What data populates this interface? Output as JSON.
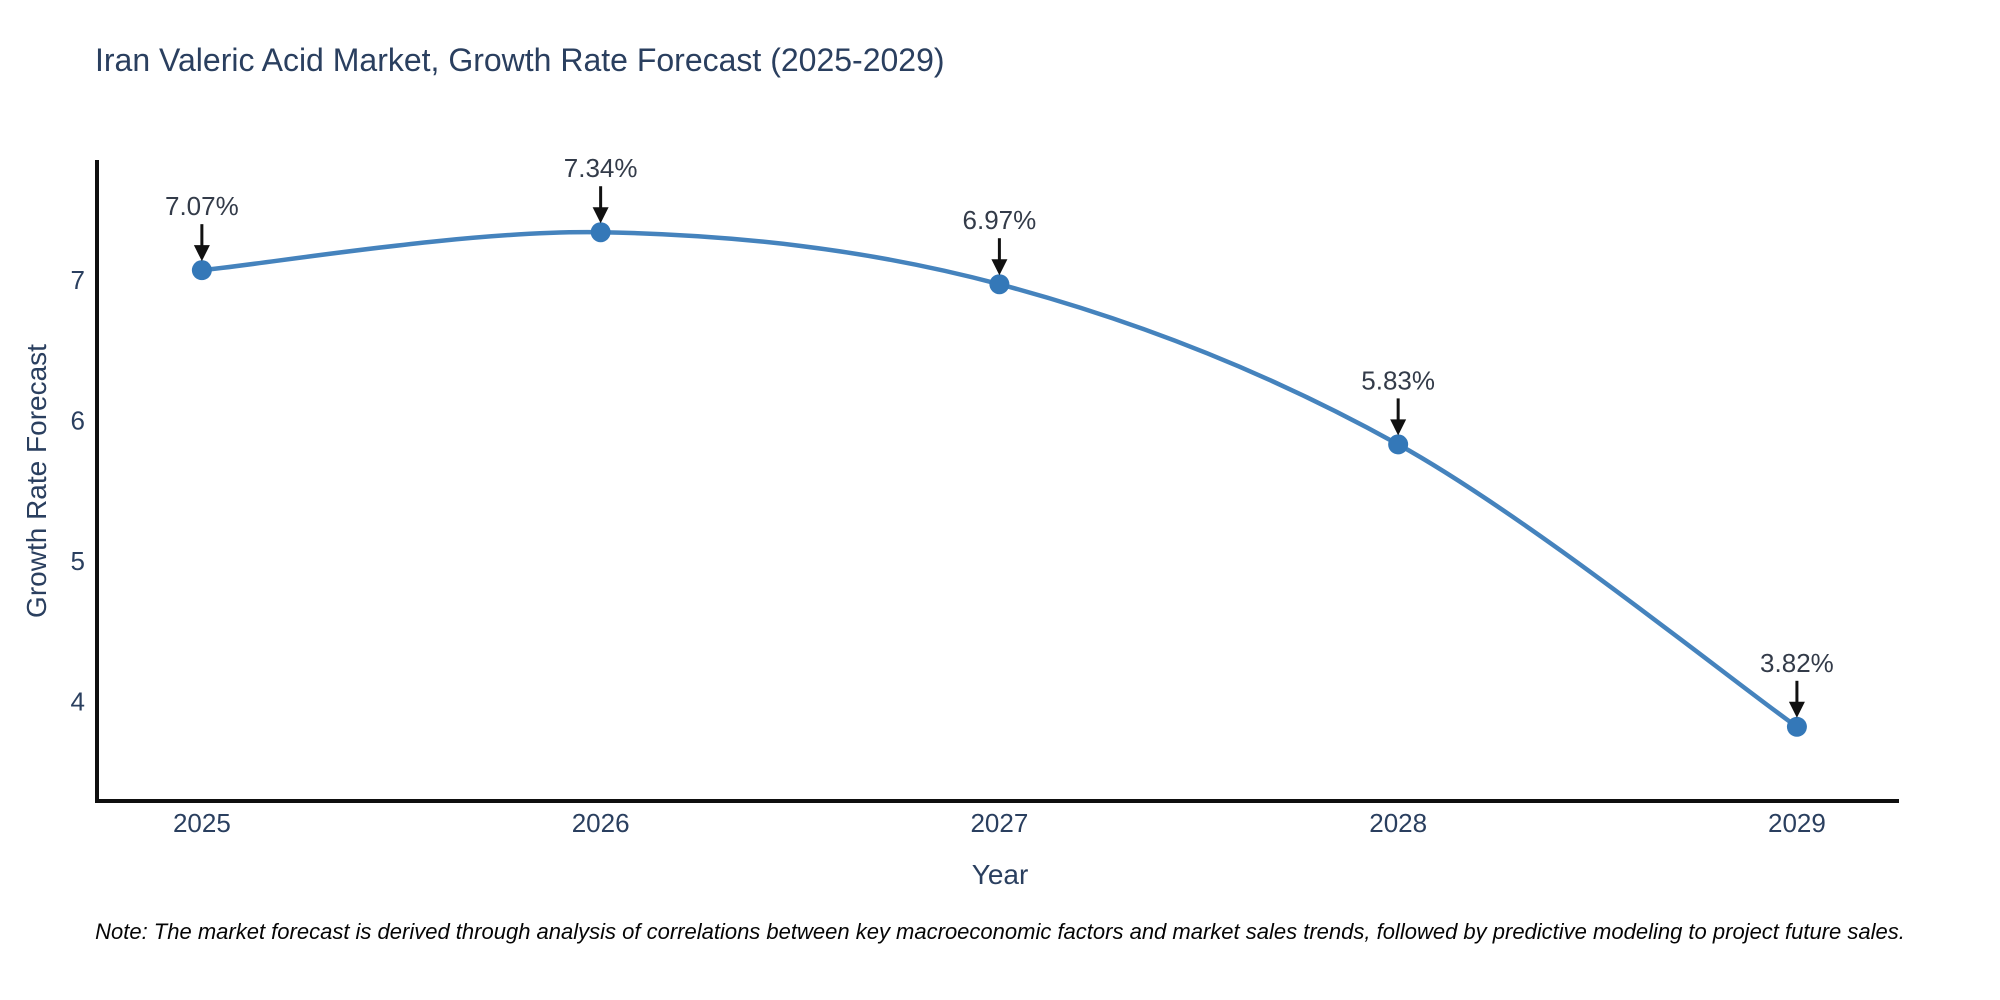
{
  "chart_data": {
    "type": "line",
    "title": "Iran Valeric Acid Market, Growth Rate Forecast (2025-2029)",
    "xlabel": "Year",
    "ylabel": "Growth Rate Forecast",
    "x": [
      2025,
      2026,
      2027,
      2028,
      2029
    ],
    "series": [
      {
        "name": "Growth Rate Forecast",
        "values": [
          7.07,
          7.34,
          6.97,
          5.83,
          3.82
        ]
      }
    ],
    "point_labels": [
      "7.07%",
      "7.34%",
      "6.97%",
      "5.83%",
      "3.82%"
    ],
    "x_ticks": [
      "2025",
      "2026",
      "2027",
      "2028",
      "2029"
    ],
    "y_ticks": [
      "4",
      "5",
      "6",
      "7"
    ],
    "x_range": [
      2024.737,
      2029.256
    ],
    "y_range": [
      3.292,
      7.854
    ],
    "grid": false,
    "legend": "none",
    "line_shape": "spline",
    "annotations_have_arrows": true,
    "colors": {
      "line": "#4583bd",
      "marker": "#3478b8",
      "axis": "#0f0f0f",
      "tick_text": "#2a3f5f",
      "title_text": "#2a3f5f",
      "annotation_text": "#333b49",
      "arrow": "#111111",
      "background": "#ffffff"
    }
  },
  "note": "Note: The market forecast is derived through analysis of correlations between key macroeconomic factors and market sales trends, followed by predictive modeling to project future sales."
}
